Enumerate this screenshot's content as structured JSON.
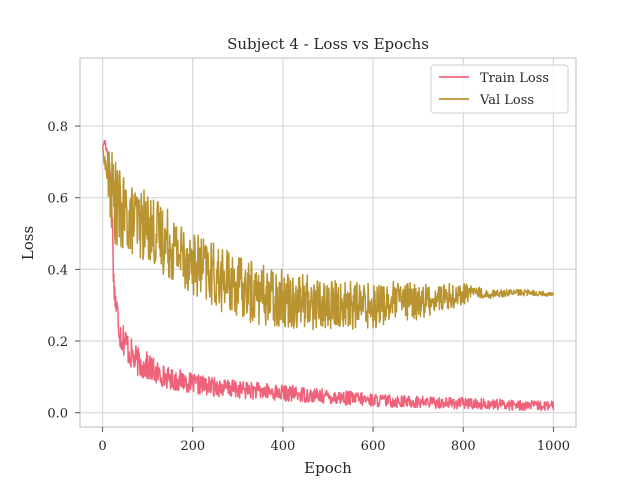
{
  "chart_data": {
    "type": "line",
    "title": "Subject 4 - Loss vs Epochs",
    "xlabel": "Epoch",
    "ylabel": "Loss",
    "xlim": [
      -50,
      1050
    ],
    "ylim": [
      -0.04,
      0.99
    ],
    "xticks": [
      0,
      200,
      400,
      600,
      800,
      1000
    ],
    "xtick_labels": [
      "0",
      "200",
      "400",
      "600",
      "800",
      "1000"
    ],
    "yticks": [
      0.0,
      0.2,
      0.4,
      0.6,
      0.8
    ],
    "ytick_labels": [
      "0.0",
      "0.2",
      "0.4",
      "0.6",
      "0.8"
    ],
    "grid": true,
    "legend_position": "top-right",
    "series": [
      {
        "name": "Train Loss",
        "color": "#f0627a",
        "x": [
          0,
          5,
          10,
          15,
          20,
          25,
          30,
          35,
          40,
          50,
          60,
          70,
          80,
          90,
          100,
          120,
          140,
          160,
          180,
          200,
          230,
          260,
          300,
          350,
          400,
          450,
          500,
          550,
          600,
          650,
          700,
          750,
          800,
          850,
          900,
          950,
          1000
        ],
        "values": [
          0.74,
          0.76,
          0.73,
          0.7,
          0.62,
          0.36,
          0.3,
          0.26,
          0.22,
          0.2,
          0.17,
          0.15,
          0.14,
          0.13,
          0.13,
          0.11,
          0.1,
          0.09,
          0.09,
          0.08,
          0.075,
          0.07,
          0.065,
          0.06,
          0.055,
          0.05,
          0.045,
          0.04,
          0.035,
          0.032,
          0.03,
          0.028,
          0.026,
          0.024,
          0.022,
          0.02,
          0.018
        ],
        "noise": [
          0.0,
          0.01,
          0.02,
          0.03,
          0.04,
          0.05,
          0.05,
          0.05,
          0.05,
          0.05,
          0.045,
          0.045,
          0.04,
          0.04,
          0.04,
          0.035,
          0.03,
          0.03,
          0.03,
          0.028,
          0.028,
          0.026,
          0.025,
          0.024,
          0.023,
          0.022,
          0.02,
          0.02,
          0.018,
          0.018,
          0.017,
          0.016,
          0.016,
          0.015,
          0.015,
          0.014,
          0.014
        ]
      },
      {
        "name": "Val Loss",
        "color": "#b8932f",
        "x": [
          0,
          5,
          10,
          15,
          20,
          25,
          30,
          40,
          60,
          80,
          100,
          120,
          150,
          200,
          250,
          300,
          350,
          400,
          450,
          500,
          550,
          600,
          650,
          700,
          750,
          800,
          820,
          850,
          900,
          950,
          1000
        ],
        "values": [
          0.74,
          0.7,
          0.67,
          0.64,
          0.62,
          0.6,
          0.58,
          0.56,
          0.54,
          0.53,
          0.52,
          0.5,
          0.47,
          0.42,
          0.38,
          0.35,
          0.33,
          0.32,
          0.31,
          0.3,
          0.3,
          0.3,
          0.31,
          0.31,
          0.32,
          0.33,
          0.34,
          0.33,
          0.335,
          0.335,
          0.33
        ],
        "noise": [
          0.0,
          0.02,
          0.05,
          0.1,
          0.12,
          0.12,
          0.12,
          0.11,
          0.1,
          0.1,
          0.1,
          0.1,
          0.1,
          0.09,
          0.09,
          0.09,
          0.085,
          0.08,
          0.08,
          0.075,
          0.07,
          0.065,
          0.06,
          0.05,
          0.04,
          0.03,
          0.02,
          0.012,
          0.01,
          0.008,
          0.006
        ]
      }
    ]
  }
}
